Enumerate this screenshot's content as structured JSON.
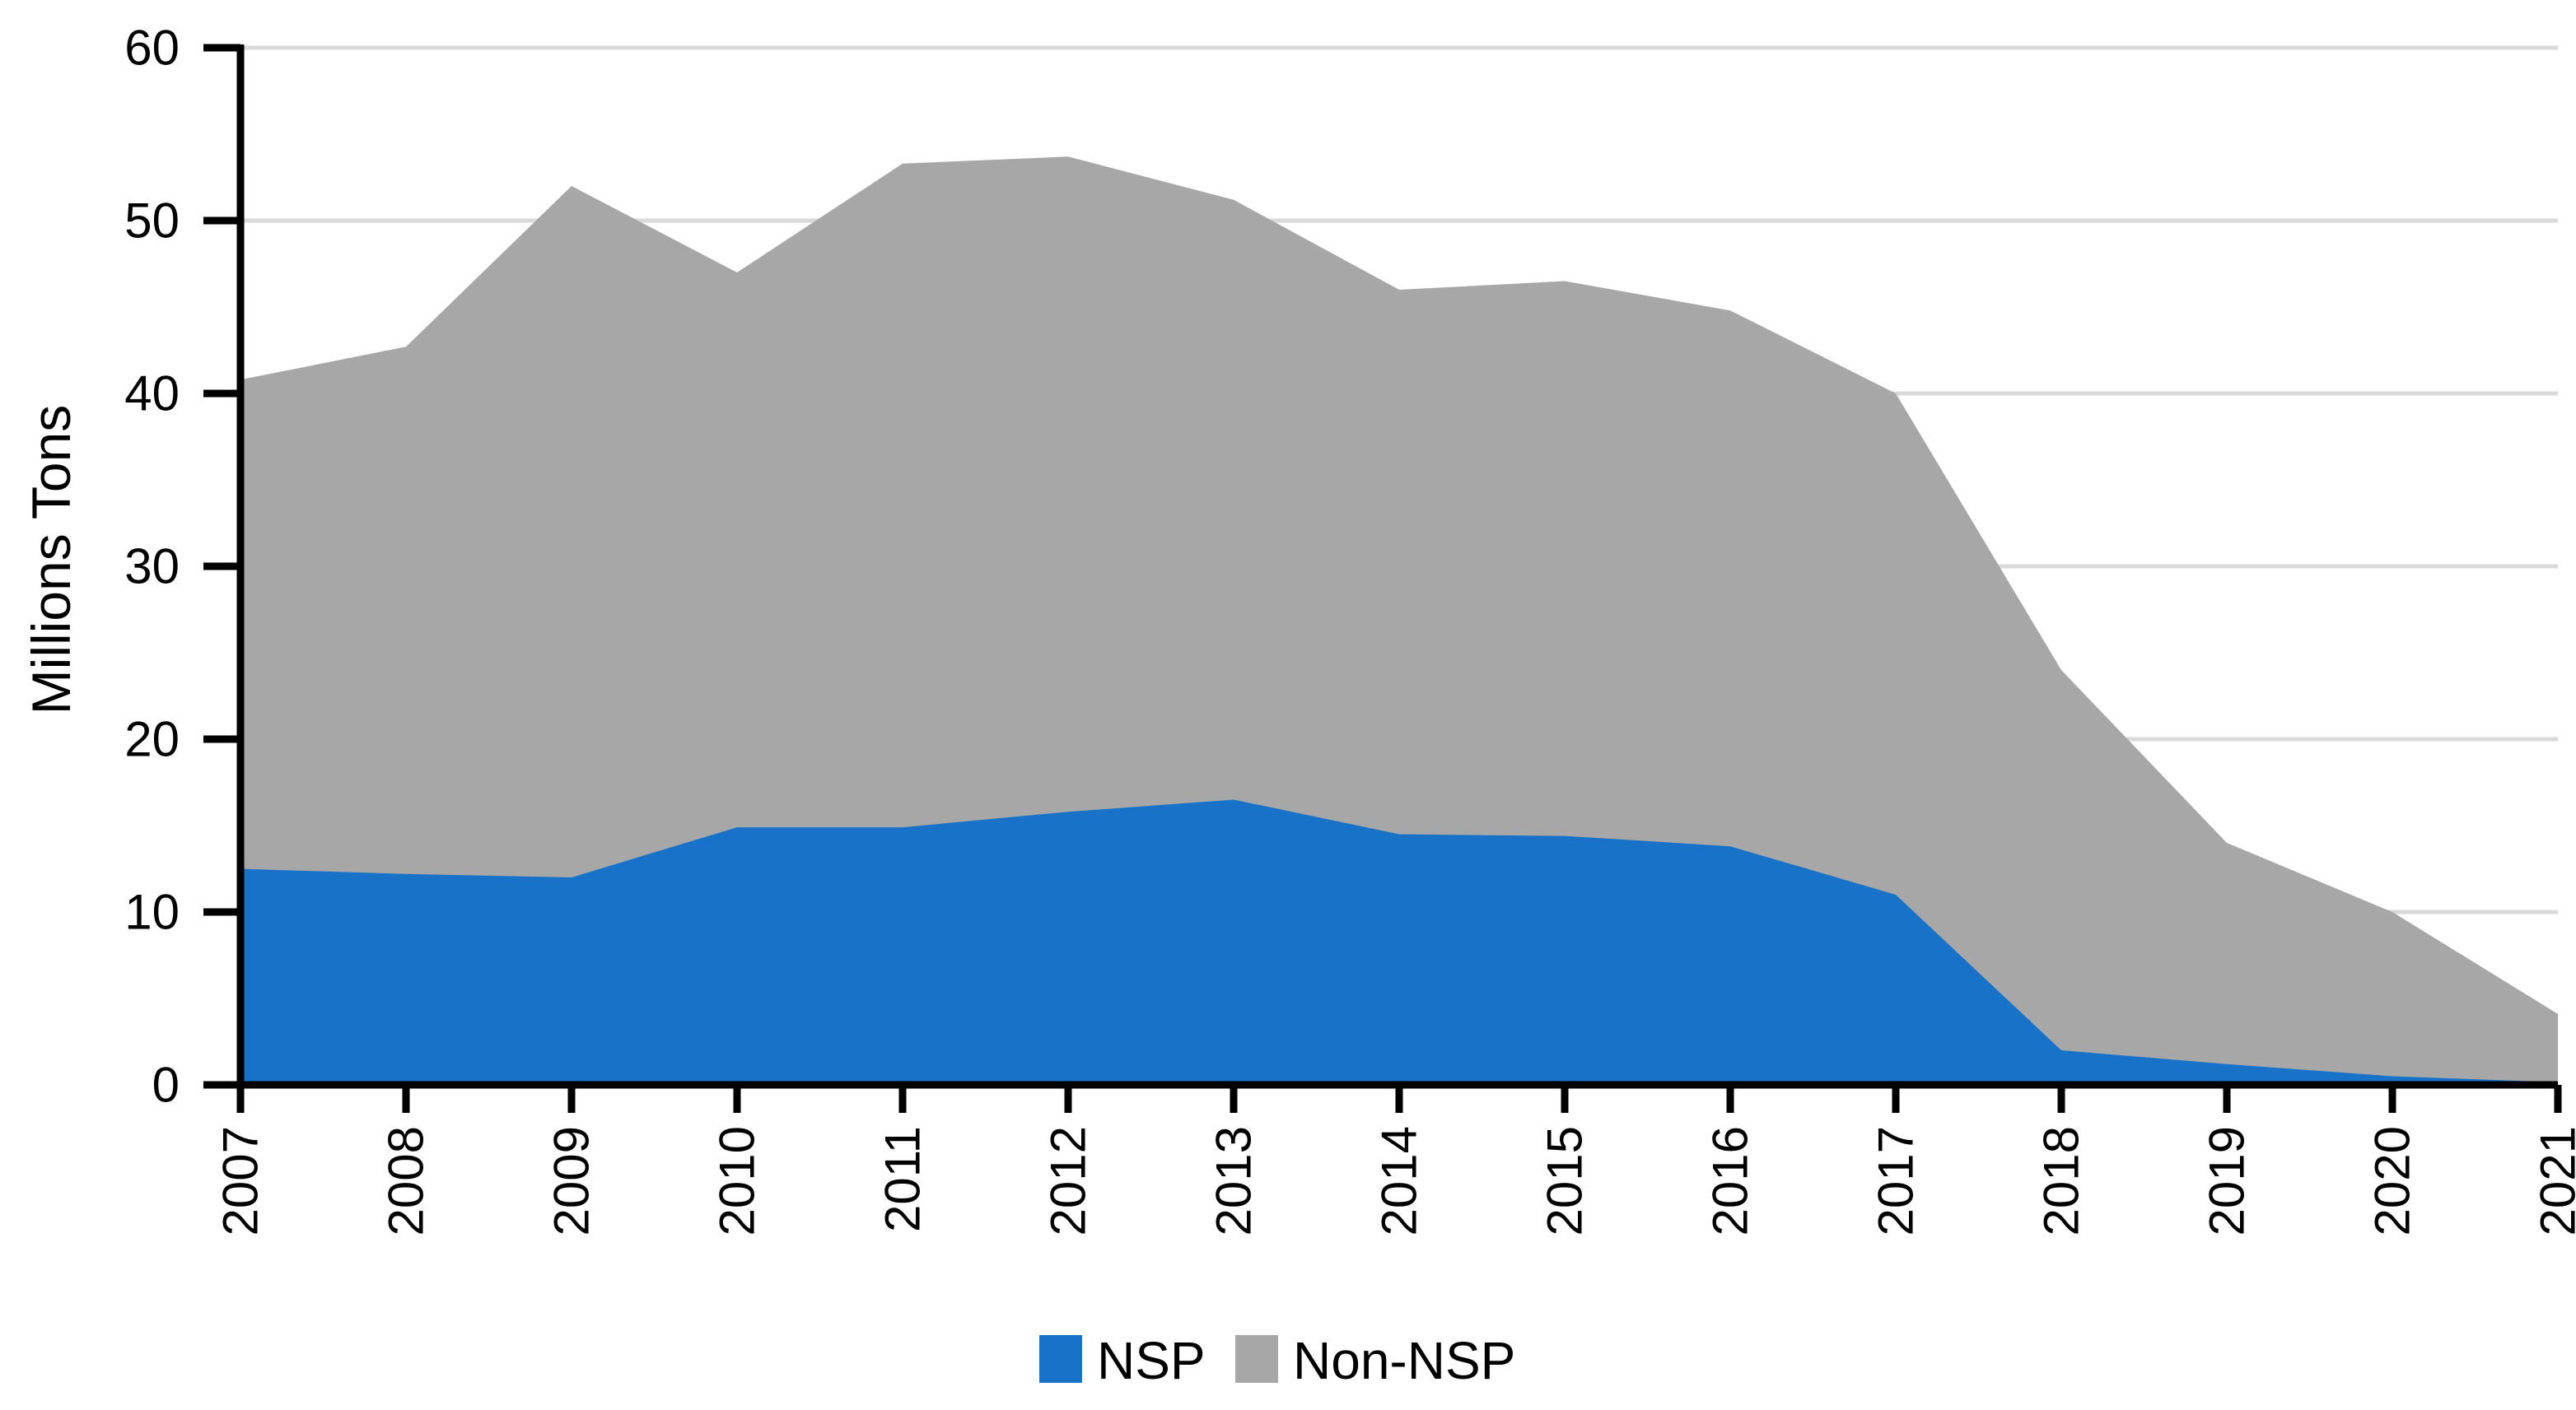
{
  "colors": {
    "nsp": "#1873C8",
    "non_nsp": "#A7A7A7",
    "gridline": "#D9D9D9",
    "axis": "#000000",
    "background": "#FFFFFF"
  },
  "axes": {
    "y_title": "Millions Tons"
  },
  "legend": {
    "items": [
      {
        "label": "NSP",
        "color": "#1873C8"
      },
      {
        "label": "Non-NSP",
        "color": "#A7A7A7"
      }
    ]
  },
  "chart_data": {
    "type": "area",
    "stacked": true,
    "title": "",
    "xlabel": "",
    "ylabel": "Millions Tons",
    "ylim": [
      0,
      60
    ],
    "y_ticks": [
      0,
      10,
      20,
      30,
      40,
      50,
      60
    ],
    "grid": true,
    "legend_position": "bottom",
    "x": [
      "2007",
      "2008",
      "2009",
      "2010",
      "2011",
      "2012",
      "2013",
      "2014",
      "2015",
      "2016",
      "2017",
      "2018",
      "2019",
      "2020",
      "2021"
    ],
    "series": [
      {
        "name": "NSP",
        "color": "#1873C8",
        "values": [
          12.5,
          12.2,
          12.0,
          14.9,
          14.9,
          15.8,
          16.5,
          14.5,
          14.4,
          13.8,
          11.0,
          2.0,
          1.2,
          0.5,
          0.15
        ]
      },
      {
        "name": "Non-NSP",
        "color": "#A7A7A7",
        "values": [
          28.3,
          30.5,
          40.0,
          32.1,
          38.4,
          37.9,
          34.7,
          31.5,
          32.1,
          31.0,
          29.0,
          22.0,
          12.8,
          9.5,
          3.95
        ]
      }
    ],
    "stacked_totals": [
      40.8,
      42.7,
      52.0,
      47.0,
      53.3,
      53.7,
      51.2,
      46.0,
      46.5,
      44.8,
      40.0,
      24.0,
      14.0,
      10.0,
      4.1
    ]
  }
}
